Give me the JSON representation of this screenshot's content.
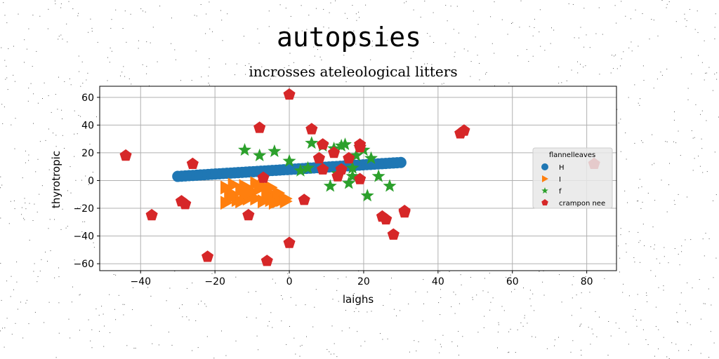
{
  "chart_data": {
    "type": "scatter",
    "title": "autopsies",
    "subtitle": "incrosses ateleological litters",
    "xlabel": "laighs",
    "ylabel": "thyrotropic",
    "xlim": [
      -51,
      88
    ],
    "ylim": [
      -65,
      68
    ],
    "xticks": [
      -40,
      -20,
      0,
      20,
      40,
      60,
      80
    ],
    "yticks": [
      -60,
      -40,
      -20,
      0,
      20,
      40,
      60
    ],
    "grid": true,
    "legend": {
      "title": "flannelleaves",
      "placement": "right"
    },
    "series": [
      {
        "name": "H",
        "marker": "circle",
        "color": "#1f77b4",
        "line_from": [
          -30,
          3
        ],
        "line_to": [
          30,
          13
        ],
        "n_points": 60
      },
      {
        "name": "I",
        "marker": "triangle-right",
        "color": "#ff7f0e",
        "points": [
          [
            -17,
            -5
          ],
          [
            -16,
            -9
          ],
          [
            -15,
            -3
          ],
          [
            -13,
            -7
          ],
          [
            -12,
            -4
          ],
          [
            -12,
            -11
          ],
          [
            -11,
            -13
          ],
          [
            -10,
            -8
          ],
          [
            -9,
            -2
          ],
          [
            -8,
            -6
          ],
          [
            -7,
            -4
          ],
          [
            -6,
            -8
          ],
          [
            -5,
            -5
          ],
          [
            -5,
            -14
          ],
          [
            -4,
            -11
          ],
          [
            -3,
            -15
          ],
          [
            -2,
            -14
          ],
          [
            -1,
            -13
          ],
          [
            -14,
            -14
          ],
          [
            -16,
            -13
          ],
          [
            -17,
            -16
          ],
          [
            -6,
            -11
          ],
          [
            -9,
            -13
          ],
          [
            -3,
            -9
          ],
          [
            -15,
            -10
          ],
          [
            -11,
            -9
          ],
          [
            -7,
            -15
          ],
          [
            -4,
            -16
          ],
          [
            -1,
            -15
          ],
          [
            -13,
            -15
          ]
        ]
      },
      {
        "name": "f",
        "marker": "star",
        "color": "#2ca02c",
        "points": [
          [
            -12,
            22
          ],
          [
            -8,
            18
          ],
          [
            -4,
            21
          ],
          [
            0,
            14
          ],
          [
            3,
            7
          ],
          [
            5,
            9
          ],
          [
            6,
            27
          ],
          [
            9,
            25
          ],
          [
            11,
            -4
          ],
          [
            12,
            23
          ],
          [
            14,
            25
          ],
          [
            15,
            26
          ],
          [
            16,
            -2
          ],
          [
            17,
            9
          ],
          [
            18,
            18
          ],
          [
            19,
            24
          ],
          [
            20,
            22
          ],
          [
            21,
            -11
          ],
          [
            22,
            16
          ],
          [
            24,
            3
          ],
          [
            27,
            -4
          ],
          [
            13,
            5
          ],
          [
            17,
            3
          ]
        ]
      },
      {
        "name": "crampon nee",
        "marker": "pentagon",
        "color": "#d62728",
        "points": [
          [
            0,
            62
          ],
          [
            -44,
            18
          ],
          [
            -37,
            -25
          ],
          [
            -29,
            -15
          ],
          [
            -28,
            -17
          ],
          [
            -26,
            12
          ],
          [
            -22,
            -55
          ],
          [
            -11,
            -25
          ],
          [
            -8,
            38
          ],
          [
            -7,
            2
          ],
          [
            -6,
            -58
          ],
          [
            0,
            -45
          ],
          [
            4,
            -14
          ],
          [
            6,
            37
          ],
          [
            8,
            16
          ],
          [
            9,
            26
          ],
          [
            9,
            8
          ],
          [
            12,
            20
          ],
          [
            13,
            3
          ],
          [
            14,
            8
          ],
          [
            16,
            16
          ],
          [
            19,
            24
          ],
          [
            19,
            26
          ],
          [
            19,
            1
          ],
          [
            25,
            -26
          ],
          [
            26,
            -28
          ],
          [
            28,
            -39
          ],
          [
            31,
            -22
          ],
          [
            31,
            -23
          ],
          [
            46,
            34
          ],
          [
            47,
            36
          ],
          [
            82,
            12
          ]
        ]
      }
    ]
  }
}
